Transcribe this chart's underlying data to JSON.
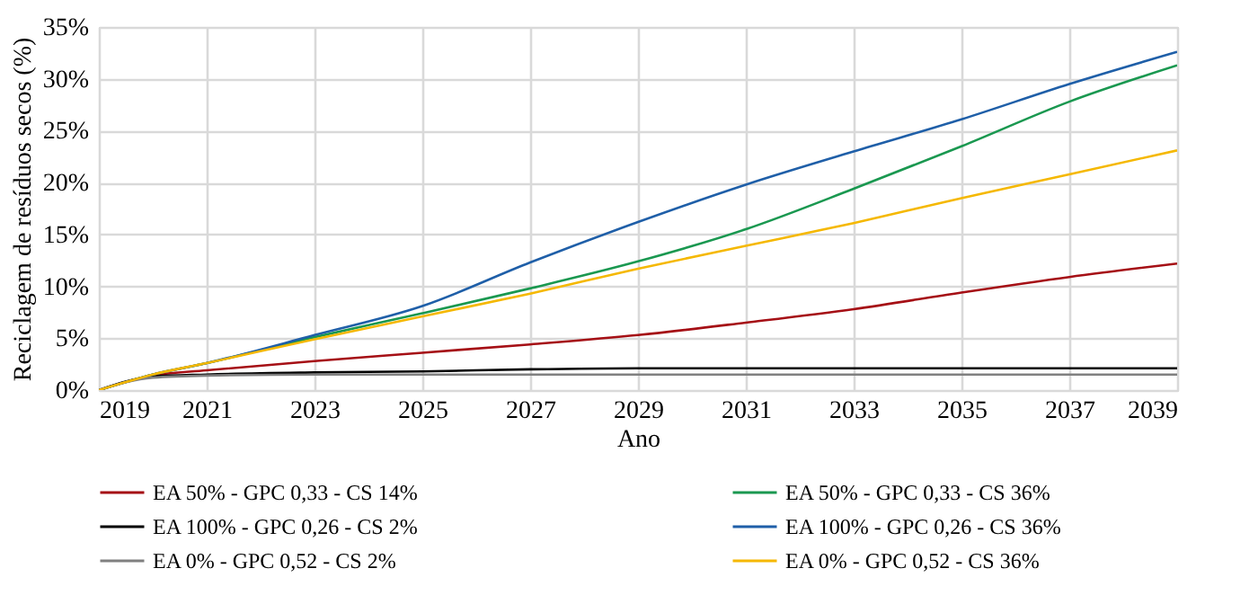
{
  "chart_data": {
    "type": "line",
    "xlabel": "Ano",
    "ylabel": "Reciclagem de resíduos secos (%)",
    "x": [
      2019,
      2020,
      2021,
      2023,
      2025,
      2027,
      2029,
      2031,
      2033,
      2035,
      2037,
      2039
    ],
    "series": [
      {
        "name": "EA 50% - GPC 0,33 - CS 14%",
        "color": "#a50f15",
        "values": [
          0,
          1.4,
          1.9,
          2.8,
          3.6,
          4.4,
          5.3,
          6.5,
          7.8,
          9.4,
          10.9,
          12.2
        ]
      },
      {
        "name": "EA 50% - GPC 0,33 - CS 36%",
        "color": "#1a9850",
        "values": [
          0,
          1.5,
          2.6,
          5.1,
          7.4,
          9.8,
          12.4,
          15.5,
          19.4,
          23.5,
          27.8,
          31.3
        ]
      },
      {
        "name": "EA 100% - GPC 0,26 - CS 2%",
        "color": "#000000",
        "values": [
          0,
          1.3,
          1.5,
          1.7,
          1.8,
          2.0,
          2.1,
          2.1,
          2.1,
          2.1,
          2.1,
          2.1
        ]
      },
      {
        "name": "EA 100% - GPC 0,26 - CS 36%",
        "color": "#1f5fa8",
        "values": [
          0,
          1.5,
          2.6,
          5.3,
          8.1,
          12.3,
          16.2,
          19.8,
          23.0,
          26.1,
          29.5,
          32.6
        ]
      },
      {
        "name": "EA 0% - GPC 0,52 - CS 2%",
        "color": "#808080",
        "values": [
          0,
          1.2,
          1.4,
          1.5,
          1.5,
          1.5,
          1.5,
          1.5,
          1.5,
          1.5,
          1.5,
          1.5
        ]
      },
      {
        "name": "EA 0% - GPC 0,52 - CS 36%",
        "color": "#f5b800",
        "values": [
          0,
          1.5,
          2.6,
          4.9,
          7.1,
          9.3,
          11.7,
          13.9,
          16.1,
          18.5,
          20.8,
          23.1
        ]
      }
    ],
    "xlim": [
      2019,
      2039
    ],
    "xticks": [
      2019,
      2021,
      2023,
      2025,
      2027,
      2029,
      2031,
      2033,
      2035,
      2037,
      2039
    ],
    "ylim": [
      0,
      35
    ],
    "yticks": [
      {
        "value": 0,
        "label": "0%"
      },
      {
        "value": 5,
        "label": "5%"
      },
      {
        "value": 10,
        "label": "10%"
      },
      {
        "value": 15,
        "label": "15%"
      },
      {
        "value": 20,
        "label": "20%"
      },
      {
        "value": 25,
        "label": "25%"
      },
      {
        "value": 30,
        "label": "30%"
      },
      {
        "value": 35,
        "label": "35%"
      }
    ],
    "grid": true,
    "legend": "bottom",
    "marker": "none",
    "line_style": "solid"
  }
}
